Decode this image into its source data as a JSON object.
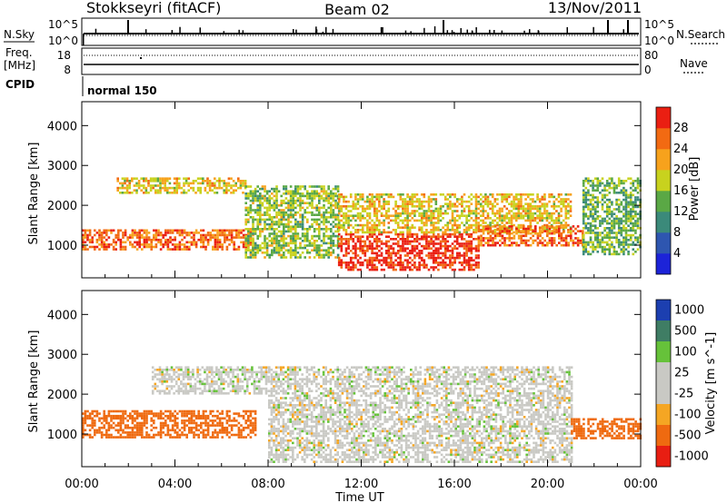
{
  "header": {
    "station": "Stokkseyri (fitACF)",
    "beam": "Beam 02",
    "date": "13/Nov/2011"
  },
  "sky_panel": {
    "left_label": "N.Sky",
    "right_label": "N.Search",
    "left_ticks": [
      "10^5",
      "10^0"
    ],
    "right_ticks": [
      "10^5",
      "10^0"
    ]
  },
  "freq_panel": {
    "left_label_1": "Freq.",
    "left_label_2": "[MHz]",
    "right_label": "Nave",
    "left_ticks": [
      "18",
      "8"
    ],
    "right_ticks": [
      "80",
      "0"
    ]
  },
  "cpid": {
    "label": "CPID",
    "program": "normal 150"
  },
  "chart_data": [
    {
      "type": "heatmap",
      "title": "",
      "xlabel": "",
      "ylabel": "Slant Range [km]",
      "xlim": [
        "00:00",
        "24:00"
      ],
      "ylim": [
        180,
        4600
      ],
      "yticks": [
        "1000",
        "2000",
        "3000",
        "4000"
      ],
      "colorbar": {
        "label": "Power [dB]",
        "ticks": [
          "4",
          "8",
          "12",
          "16",
          "20",
          "24",
          "28"
        ],
        "colors": [
          "#1c23d8",
          "#2e56b0",
          "#3b8a7a",
          "#5aa845",
          "#c8d21e",
          "#f7a21c",
          "#f26a12",
          "#ea1f12"
        ]
      },
      "regions": [
        {
          "x_start": "00:00",
          "x_end": "07:30",
          "range_km": [
            900,
            1400
          ],
          "level_db": 26
        },
        {
          "x_start": "01:30",
          "x_end": "07:00",
          "range_km": [
            2300,
            2700
          ],
          "level_db": 20
        },
        {
          "x_start": "07:00",
          "x_end": "11:00",
          "range_km": [
            700,
            2500
          ],
          "level_db": 16
        },
        {
          "x_start": "11:00",
          "x_end": "17:00",
          "range_km": [
            400,
            1300
          ],
          "level_db": 30
        },
        {
          "x_start": "11:00",
          "x_end": "21:00",
          "range_km": [
            1300,
            2300
          ],
          "level_db": 20
        },
        {
          "x_start": "17:00",
          "x_end": "21:30",
          "range_km": [
            1000,
            1500
          ],
          "level_db": 26
        },
        {
          "x_start": "21:30",
          "x_end": "24:00",
          "range_km": [
            800,
            2700
          ],
          "level_db": 14
        }
      ]
    },
    {
      "type": "heatmap",
      "title": "",
      "xlabel": "Time UT",
      "ylabel": "Slant Range [km]",
      "xlim": [
        "00:00",
        "24:00"
      ],
      "ylim": [
        180,
        4600
      ],
      "xticks": [
        "00:00",
        "04:00",
        "08:00",
        "12:00",
        "16:00",
        "20:00",
        "00:00"
      ],
      "yticks": [
        "1000",
        "2000",
        "3000",
        "4000"
      ],
      "colorbar": {
        "label": "Velocity [m s^-1]",
        "ticks": [
          "1000",
          "500",
          "100",
          "25",
          "-25",
          "-100",
          "-500",
          "-1000"
        ],
        "colors": [
          "#1c3fb0",
          "#3f7d64",
          "#66c23a",
          "#c9c9c4",
          "#c9c9c4",
          "#f5a623",
          "#ef6a10",
          "#e81e12"
        ]
      },
      "regions": [
        {
          "x_start": "00:00",
          "x_end": "07:30",
          "range_km": [
            900,
            1600
          ],
          "velocity_ms": -300
        },
        {
          "x_start": "03:00",
          "x_end": "08:00",
          "range_km": [
            2000,
            2700
          ],
          "velocity_ms": 0
        },
        {
          "x_start": "08:00",
          "x_end": "21:00",
          "range_km": [
            300,
            2700
          ],
          "velocity_ms": 0
        },
        {
          "x_start": "21:00",
          "x_end": "24:00",
          "range_km": [
            900,
            1400
          ],
          "velocity_ms": -400
        }
      ]
    }
  ]
}
